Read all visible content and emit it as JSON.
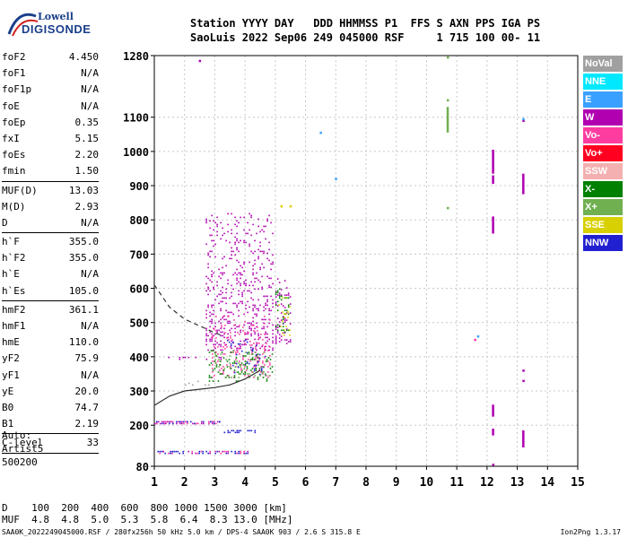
{
  "logo": {
    "line1": "Lowell",
    "line2": "DIGISONDE"
  },
  "header": {
    "line1": "Station YYYY DAY   DDD HHMMSS P1  FFS S AXN PPS IGA PS",
    "line2": "SaoLuis 2022 Sep06 249 045000 RSF     1 715 100 00- 11"
  },
  "params": {
    "g1": [
      {
        "k": "foF2",
        "v": "4.450"
      },
      {
        "k": "foF1",
        "v": "N/A"
      },
      {
        "k": "foF1p",
        "v": "N/A"
      },
      {
        "k": "foE",
        "v": "N/A"
      },
      {
        "k": "foEp",
        "v": "0.35"
      },
      {
        "k": "fxI",
        "v": "5.15"
      },
      {
        "k": "foEs",
        "v": "2.20"
      },
      {
        "k": "fmin",
        "v": "1.50"
      }
    ],
    "g2": [
      {
        "k": "MUF(D)",
        "v": "13.03"
      },
      {
        "k": "M(D)",
        "v": "2.93"
      },
      {
        "k": "D",
        "v": "N/A"
      }
    ],
    "g3": [
      {
        "k": "h`F",
        "v": "355.0"
      },
      {
        "k": "h`F2",
        "v": "355.0"
      },
      {
        "k": "h`E",
        "v": "N/A"
      },
      {
        "k": "h`Es",
        "v": "105.0"
      }
    ],
    "g4": [
      {
        "k": "hmF2",
        "v": "361.1"
      },
      {
        "k": "hmF1",
        "v": "N/A"
      },
      {
        "k": "hmE",
        "v": "110.0"
      },
      {
        "k": "yF2",
        "v": "75.9"
      },
      {
        "k": "yF1",
        "v": "N/A"
      },
      {
        "k": "yE",
        "v": "20.0"
      },
      {
        "k": "B0",
        "v": "74.7"
      },
      {
        "k": "B1",
        "v": "2.19"
      }
    ],
    "g5": [
      {
        "k": "C-level",
        "v": "33"
      }
    ]
  },
  "auto": {
    "line1": "Auto:",
    "line2": "Artist5",
    "line3": "500200"
  },
  "legend": [
    {
      "label": "NoVal",
      "color": "#a0a0a0"
    },
    {
      "label": "NNE",
      "color": "#00e8ff"
    },
    {
      "label": "E",
      "color": "#3aa0ff"
    },
    {
      "label": "W",
      "color": "#b000b0"
    },
    {
      "label": "Vo-",
      "color": "#ff3ca0"
    },
    {
      "label": "Vo+",
      "color": "#ff0020"
    },
    {
      "label": "SSW",
      "color": "#f4b0b0"
    },
    {
      "label": "X-",
      "color": "#008000"
    },
    {
      "label": "X+",
      "color": "#70b050"
    },
    {
      "label": "SSE",
      "color": "#d8d000"
    },
    {
      "label": "NNW",
      "color": "#2020d0"
    }
  ],
  "dmuf": {
    "line1": "D    100  200  400  600  800 1000 1500 3000 [km]",
    "line2": "MUF  4.8  4.8  5.0  5.3  5.8  6.4  8.3 13.0 [MHz]"
  },
  "footer": {
    "left": "SAA0K_2022249045000.RSF / 280fx256h 50 kHz 5.0 km / DPS-4 SAA0K 903 / 2.6 S 315.8 E",
    "right": "Ion2Png 1.3.17"
  },
  "chart_data": {
    "type": "scatter",
    "xlim": [
      1,
      15
    ],
    "ylim": [
      80,
      1280
    ],
    "x_ticks": [
      1,
      2,
      3,
      4,
      5,
      6,
      7,
      8,
      9,
      10,
      11,
      12,
      13,
      14,
      15
    ],
    "y_ticks": [
      80,
      200,
      300,
      400,
      500,
      600,
      700,
      800,
      900,
      1000,
      1100,
      1280
    ],
    "grid": true,
    "traces": [
      {
        "name": "solid",
        "style": "solid",
        "x": [
          1,
          1.5,
          2,
          2.5,
          3,
          3.5,
          4,
          4.3,
          4.5
        ],
        "y": [
          258,
          285,
          300,
          305,
          310,
          318,
          335,
          350,
          360
        ]
      },
      {
        "name": "dashed",
        "style": "dashed",
        "x": [
          1,
          1.5,
          2,
          2.5,
          3,
          3.3
        ],
        "y": [
          610,
          545,
          510,
          490,
          470,
          460
        ]
      }
    ],
    "clusters": [
      {
        "x": [
          2.7,
          4.9
        ],
        "y": [
          420,
          820
        ],
        "color": "#b000b0",
        "density": 0.5
      },
      {
        "x": [
          2.9,
          4.8
        ],
        "y": [
          340,
          520
        ],
        "color": "#ff3ca0",
        "density": 0.45
      },
      {
        "x": [
          2.8,
          4.9
        ],
        "y": [
          330,
          420
        ],
        "color": "#008000",
        "density": 0.25
      },
      {
        "x": [
          3.4,
          4.7
        ],
        "y": [
          350,
          450
        ],
        "color": "#2020d0",
        "density": 0.2
      },
      {
        "x": [
          3.0,
          4.8
        ],
        "y": [
          340,
          420
        ],
        "color": "#70b050",
        "density": 0.25
      },
      {
        "x": [
          5.0,
          5.5
        ],
        "y": [
          440,
          640
        ],
        "color": "#b000b0",
        "density": 0.55
      },
      {
        "x": [
          5.0,
          5.5
        ],
        "y": [
          470,
          600
        ],
        "color": "#008000",
        "density": 0.25
      },
      {
        "x": [
          5.1,
          5.5
        ],
        "y": [
          460,
          580
        ],
        "color": "#d8d000",
        "density": 0.2
      },
      {
        "x": [
          1.0,
          3.2
        ],
        "y": [
          205,
          212
        ],
        "color": "#b000b0",
        "density": 0.8
      },
      {
        "x": [
          1.0,
          3.2
        ],
        "y": [
          205,
          212
        ],
        "color": "#2020d0",
        "density": 0.4
      },
      {
        "x": [
          1.0,
          3.2
        ],
        "y": [
          205,
          212
        ],
        "color": "#ff3ca0",
        "density": 0.3
      },
      {
        "x": [
          1.1,
          4.1
        ],
        "y": [
          118,
          125
        ],
        "color": "#2020d0",
        "density": 0.7
      },
      {
        "x": [
          1.1,
          4.1
        ],
        "y": [
          118,
          125
        ],
        "color": "#b000b0",
        "density": 0.3
      },
      {
        "x": [
          1.1,
          4.1
        ],
        "y": [
          118,
          125
        ],
        "color": "#ff3ca0",
        "density": 0.25
      },
      {
        "x": [
          3.3,
          4.4
        ],
        "y": [
          178,
          186
        ],
        "color": "#2020d0",
        "density": 0.7
      },
      {
        "x": [
          1.4,
          3.2
        ],
        "y": [
          390,
          400
        ],
        "color": "#b000b0",
        "density": 0.3
      },
      {
        "x": [
          1.0,
          3.0
        ],
        "y": [
          310,
          330
        ],
        "color": "#a0a0a0",
        "density": 0.15
      }
    ],
    "segments": [
      {
        "x": 12.2,
        "y": [
          935,
          1005
        ],
        "color": "#b000b0"
      },
      {
        "x": 12.2,
        "y": [
          905,
          930
        ],
        "color": "#b000b0"
      },
      {
        "x": 12.2,
        "y": [
          760,
          810
        ],
        "color": "#b000b0"
      },
      {
        "x": 12.2,
        "y": [
          225,
          260
        ],
        "color": "#b000b0"
      },
      {
        "x": 12.2,
        "y": [
          170,
          190
        ],
        "color": "#b000b0"
      },
      {
        "x": 13.2,
        "y": [
          875,
          935
        ],
        "color": "#b000b0"
      },
      {
        "x": 13.2,
        "y": [
          135,
          185
        ],
        "color": "#b000b0"
      },
      {
        "x": 10.7,
        "y": [
          1055,
          1130
        ],
        "color": "#70b050"
      }
    ],
    "points": [
      {
        "x": 6.5,
        "y": 1055,
        "color": "#3aa0ff"
      },
      {
        "x": 7.0,
        "y": 920,
        "color": "#3aa0ff"
      },
      {
        "x": 10.7,
        "y": 1275,
        "color": "#70b050"
      },
      {
        "x": 10.7,
        "y": 1150,
        "color": "#70b050"
      },
      {
        "x": 10.7,
        "y": 835,
        "color": "#70b050"
      },
      {
        "x": 11.6,
        "y": 450,
        "color": "#ff3ca0"
      },
      {
        "x": 11.7,
        "y": 460,
        "color": "#3aa0ff"
      },
      {
        "x": 12.2,
        "y": 85,
        "color": "#b000b0"
      },
      {
        "x": 13.2,
        "y": 1090,
        "color": "#b000b0"
      },
      {
        "x": 13.2,
        "y": 1095,
        "color": "#3aa0ff"
      },
      {
        "x": 13.2,
        "y": 360,
        "color": "#b000b0"
      },
      {
        "x": 13.2,
        "y": 330,
        "color": "#b000b0"
      },
      {
        "x": 2.5,
        "y": 1265,
        "color": "#b000b0"
      },
      {
        "x": 5.2,
        "y": 840,
        "color": "#d8d000"
      },
      {
        "x": 5.5,
        "y": 840,
        "color": "#d8d000"
      }
    ]
  }
}
